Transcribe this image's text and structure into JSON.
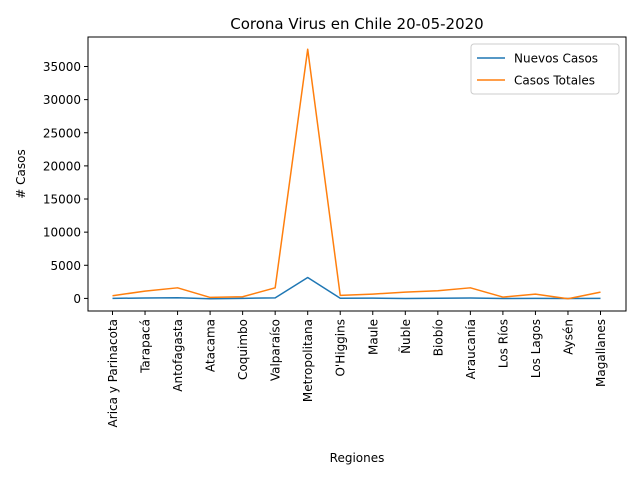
{
  "chart_data": {
    "type": "line",
    "title": "Corona Virus en Chile 20-05-2020",
    "xlabel": "Regiones",
    "ylabel": "# Casos",
    "categories": [
      "Arica y Parinacota",
      "Tarapacá",
      "Antofagasta",
      "Atacama",
      "Coquimbo",
      "Valparaíso",
      "Metropolitana",
      "O'Higgins",
      "Maule",
      "Ñuble",
      "Biobío",
      "Araucanía",
      "Los Ríos",
      "Los Lagos",
      "Aysén",
      "Magallanes"
    ],
    "yticks": [
      0,
      5000,
      10000,
      15000,
      20000,
      25000,
      30000,
      35000
    ],
    "ylim": [
      -1900,
      39450
    ],
    "grid": false,
    "legend_position": "top-right",
    "series": [
      {
        "name": "Nuevos Casos",
        "color": "#1f77b4",
        "values": [
          10,
          60,
          100,
          -50,
          10,
          80,
          3150,
          30,
          50,
          -20,
          30,
          60,
          -10,
          0,
          -10,
          10
        ]
      },
      {
        "name": "Casos Totales",
        "color": "#ff7f0e",
        "values": [
          400,
          1100,
          1600,
          150,
          250,
          1600,
          37600,
          450,
          650,
          950,
          1150,
          1600,
          200,
          650,
          -50,
          950
        ]
      }
    ]
  }
}
